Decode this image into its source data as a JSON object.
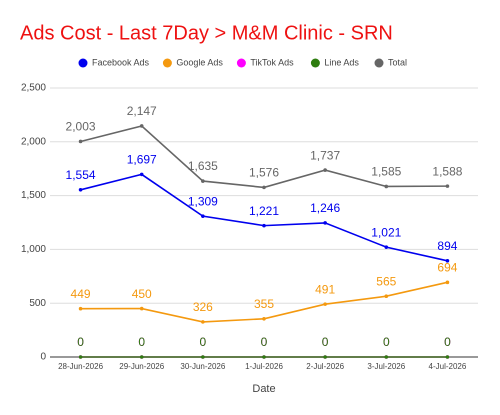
{
  "chart_data": {
    "type": "line",
    "title": "Ads Cost - Last 7Day > M&M Clinic - SRN",
    "title_color": "#ee1111",
    "x_label": "Date",
    "categories": [
      "28-Jun-2026",
      "29-Jun-2026",
      "30-Jun-2026",
      "1-Jul-2026",
      "2-Jul-2026",
      "3-Jul-2026",
      "4-Jul-2026"
    ],
    "series": [
      {
        "name": "Facebook Ads",
        "color": "#0000ee",
        "values": [
          1554,
          1697,
          1309,
          1221,
          1246,
          1021,
          894
        ],
        "value_labels": [
          "1,554",
          "1,697",
          "1,309",
          "1,221",
          "1,246",
          "1,021",
          "894"
        ]
      },
      {
        "name": "Google Ads",
        "color": "#f4990f",
        "values": [
          449,
          450,
          326,
          355,
          491,
          565,
          694
        ]
      },
      {
        "name": "TikTok Ads",
        "color": "#ff00ff",
        "values": [
          0,
          0,
          0,
          0,
          0,
          0,
          0
        ]
      },
      {
        "name": "Line Ads",
        "color": "#2e7d0f",
        "values": [
          0,
          0,
          0,
          0,
          0,
          0,
          0
        ]
      },
      {
        "name": "Total",
        "color": "#666666",
        "values": [
          2003,
          2147,
          1635,
          1576,
          1737,
          1585,
          1588
        ],
        "value_labels": [
          "2,003",
          "2,147",
          "1,635",
          "1,576",
          "1,737",
          "1,585",
          "1,588"
        ]
      }
    ],
    "ylim": [
      0,
      2500
    ],
    "yticks": [
      0,
      500,
      {
        "value": 1000,
        "label": "1,000"
      },
      {
        "value": 1500,
        "label": "1,500"
      },
      {
        "value": 2000,
        "label": "2,000"
      },
      {
        "value": 2500,
        "label": "2,500"
      }
    ],
    "grid": true,
    "legend": "top"
  }
}
